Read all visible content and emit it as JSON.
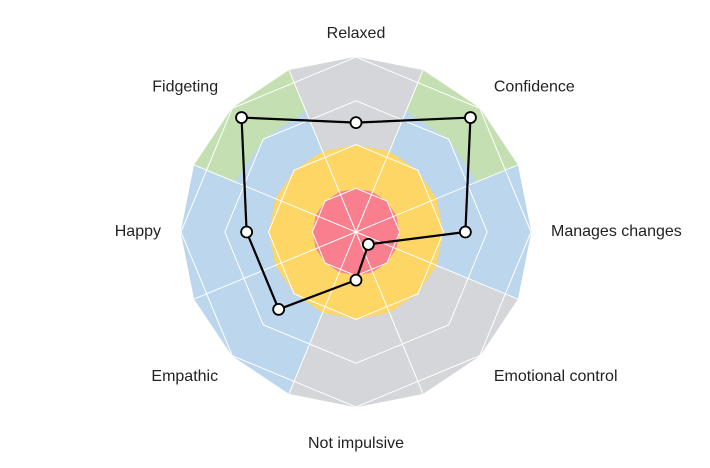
{
  "chart_data": {
    "type": "radar",
    "title": "",
    "axes": [
      "Relaxed",
      "Confidence",
      "Manages changes",
      "Emotional control",
      "Not impulsive",
      "Empathic",
      "Happy",
      "Fidgeting"
    ],
    "rings": 4,
    "max": 4,
    "series": [
      {
        "values": [
          2.5,
          3.7,
          2.5,
          0.4,
          1.1,
          2.5,
          2.5,
          3.7
        ]
      }
    ],
    "band_colors": {
      "inner": "#f97f8e",
      "middle": "#fdd666",
      "outer_blue": "#bcd6ee",
      "outer_green": "#c4e0b3",
      "outer_gray": "#d4d6d9"
    },
    "outer_colors_by_axis": [
      "gray",
      "green",
      "blue",
      "gray",
      "gray",
      "blue",
      "blue",
      "green"
    ],
    "line_color": "#000000",
    "marker_fill": "#ffffff"
  }
}
